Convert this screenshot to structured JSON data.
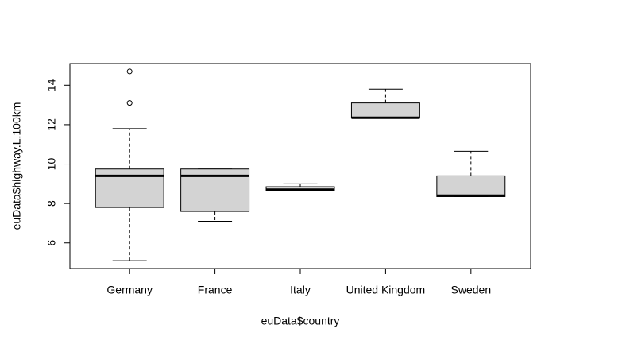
{
  "chart_data": {
    "type": "boxplot",
    "x_label": "euData$country",
    "y_label": "euData$highway.L.100km",
    "categories": [
      "Germany",
      "France",
      "Italy",
      "United Kingdom",
      "Sweden"
    ],
    "boxes": [
      {
        "min": 5.1,
        "q1": 7.8,
        "median": 9.4,
        "q3": 9.75,
        "max": 11.8,
        "outliers": [
          13.1,
          14.7
        ]
      },
      {
        "min": 7.1,
        "q1": 7.6,
        "median": 9.4,
        "q3": 9.75,
        "max": 9.75
      },
      {
        "min": 8.65,
        "q1": 8.65,
        "median": 8.7,
        "q3": 8.85,
        "max": 9.0
      },
      {
        "min": 12.35,
        "q1": 12.35,
        "median": 12.35,
        "q3": 13.1,
        "max": 13.8
      },
      {
        "min": 8.35,
        "q1": 8.35,
        "median": 8.4,
        "q3": 9.4,
        "max": 10.65
      }
    ],
    "color": "#d3d3d3",
    "ylim": [
      4.7,
      15.1
    ],
    "yticks": [
      6,
      8,
      10,
      12,
      14
    ]
  }
}
